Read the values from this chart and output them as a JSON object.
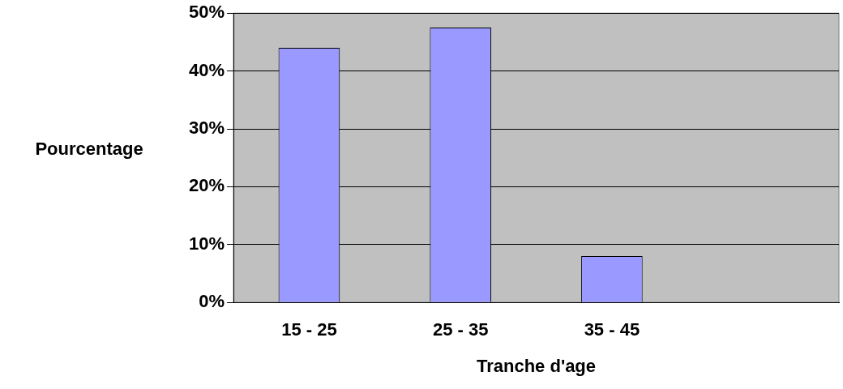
{
  "chart_data": {
    "type": "bar",
    "xlabel": "Tranche d'age",
    "ylabel": "Pourcentage",
    "categories": [
      "15 - 25",
      "25 - 35",
      "35 - 45",
      null
    ],
    "values": [
      44,
      47.5,
      8,
      null
    ],
    "color": "#9999ff",
    "ylim": [
      0,
      50
    ],
    "yticks": [
      {
        "value": 0,
        "label": "0%"
      },
      {
        "value": 10,
        "label": "10%"
      },
      {
        "value": 20,
        "label": "20%"
      },
      {
        "value": 30,
        "label": "30%"
      },
      {
        "value": 40,
        "label": "40%"
      },
      {
        "value": 50,
        "label": "50%"
      }
    ],
    "grid": "y",
    "legend": false
  }
}
